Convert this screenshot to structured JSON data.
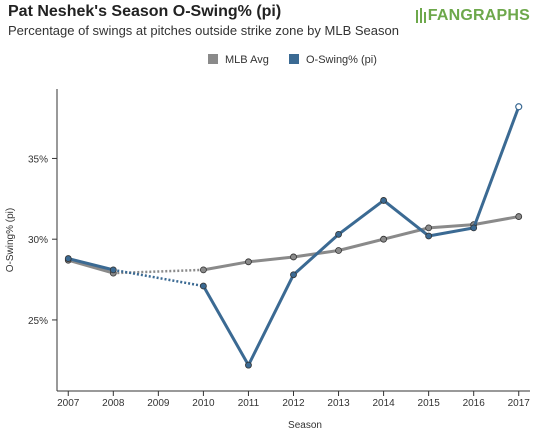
{
  "header": {
    "title": "Pat Neshek's Season O-Swing% (pi)",
    "subtitle": "Percentage of swings at pitches outside strike zone by MLB Season",
    "logo_text": "FANGRAPHS"
  },
  "chart_data": {
    "type": "line",
    "title": "Pat Neshek's Season O-Swing% (pi)",
    "subtitle": "Percentage of swings at pitches outside strike zone by MLB Season",
    "xlabel": "Season",
    "ylabel": "O-Swing% (pi)",
    "x": [
      2007,
      2008,
      2009,
      2010,
      2011,
      2012,
      2013,
      2014,
      2015,
      2016,
      2017
    ],
    "x_tick_labels": [
      "2007",
      "2008",
      "2009",
      "2010",
      "2011",
      "2012",
      "2013",
      "2014",
      "2015",
      "2016",
      "2017"
    ],
    "y_ticks": [
      25,
      30,
      35
    ],
    "y_tick_labels": [
      "25%",
      "30%",
      "35%"
    ],
    "ylim": [
      20.6,
      39.3
    ],
    "xlim": [
      2006.75,
      2017.25
    ],
    "grid": false,
    "legend_position": "top-center",
    "series": [
      {
        "name": "MLB Avg",
        "color": "#8a8a8a",
        "x": [
          2007,
          2008,
          2010,
          2011,
          2012,
          2013,
          2014,
          2015,
          2016,
          2017
        ],
        "values": [
          28.7,
          27.9,
          28.1,
          28.6,
          28.9,
          29.3,
          30.0,
          30.7,
          30.9,
          31.4
        ]
      },
      {
        "name": "O-Swing% (pi)",
        "color": "#3b6a93",
        "x": [
          2007,
          2008,
          2010,
          2011,
          2012,
          2013,
          2014,
          2015,
          2016,
          2017
        ],
        "values": [
          28.8,
          28.1,
          27.1,
          22.2,
          27.8,
          30.3,
          32.4,
          30.2,
          30.7,
          38.2
        ]
      }
    ]
  }
}
